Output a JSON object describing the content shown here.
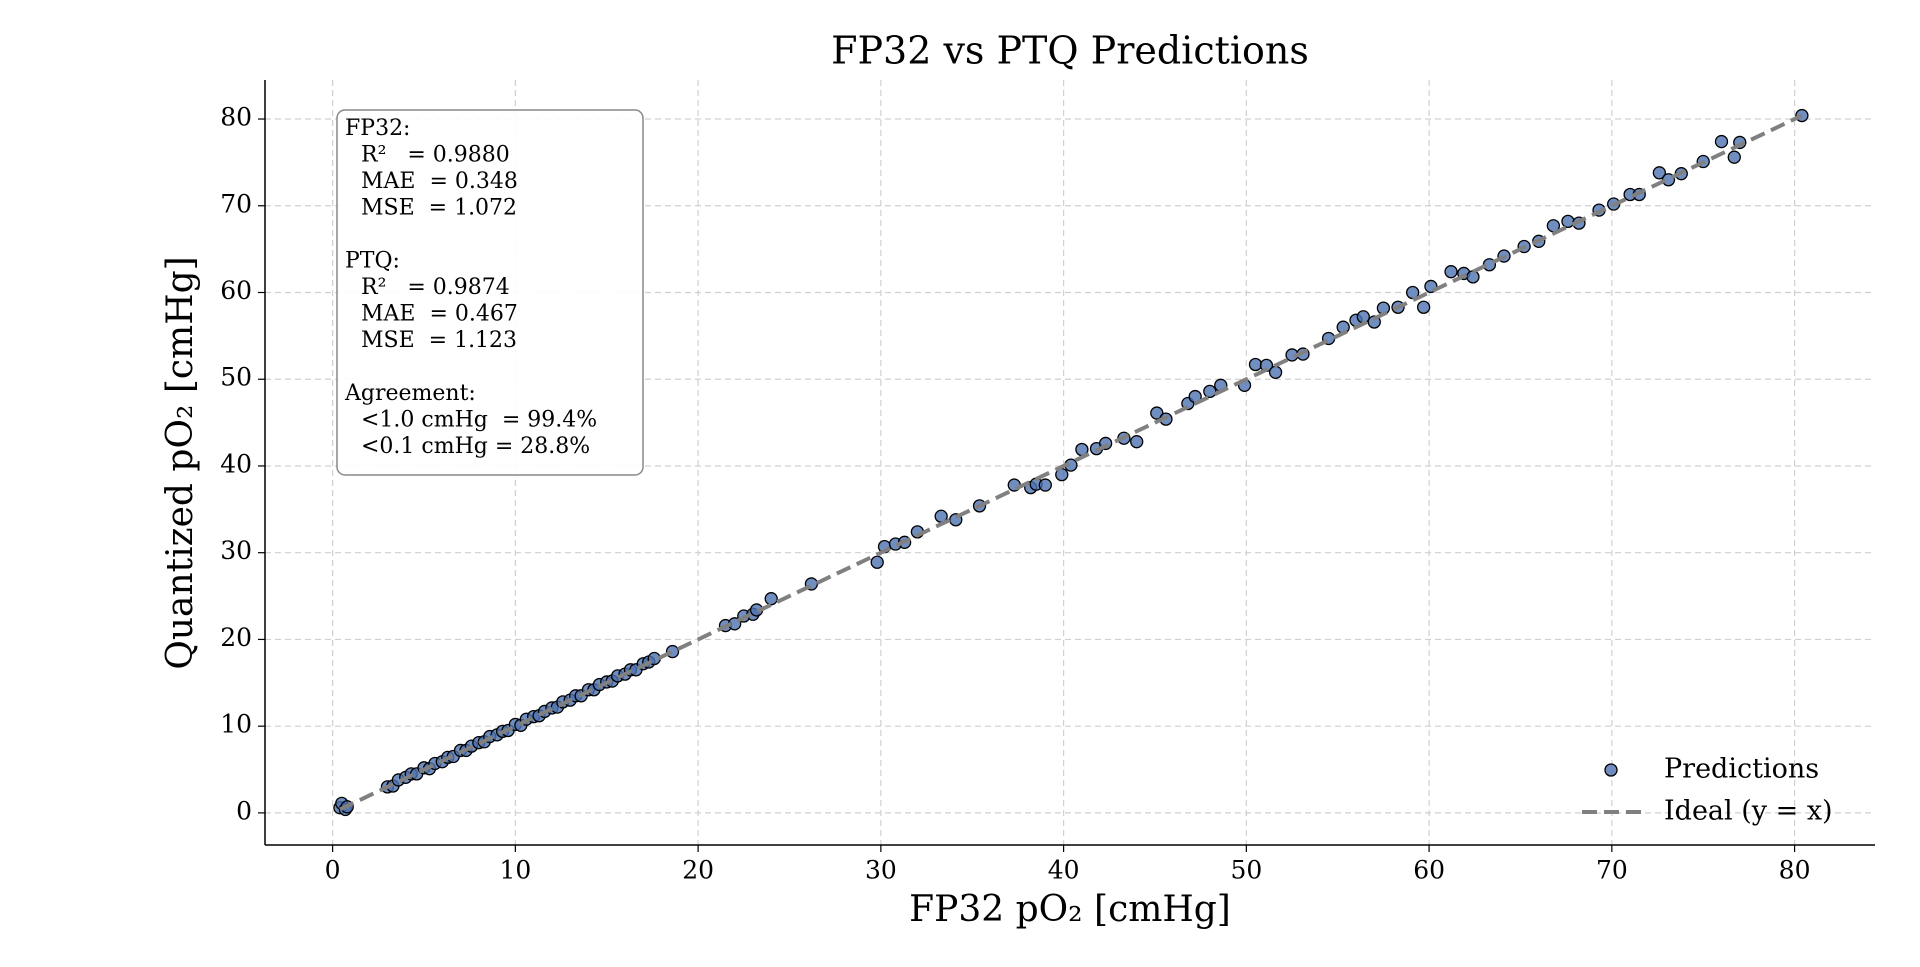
{
  "chart_data": {
    "type": "scatter",
    "title": "FP32 vs PTQ Predictions",
    "xlabel": "FP32 pO₂ [cmHg]",
    "ylabel": "Quantized pO₂ [cmHg]",
    "xlim": [
      -3.7,
      84.4
    ],
    "ylim": [
      -3.7,
      84.5
    ],
    "xticks": [
      0,
      10,
      20,
      30,
      40,
      50,
      60,
      70,
      80
    ],
    "yticks": [
      0,
      10,
      20,
      30,
      40,
      50,
      60,
      70,
      80
    ],
    "grid": true,
    "legend": "lower right",
    "series": [
      {
        "name": "Predictions",
        "color": "#4c72b0",
        "x": [
          0.4,
          0.5,
          0.7,
          0.8,
          3,
          3.3,
          3.6,
          4,
          4.3,
          4.6,
          5,
          5.3,
          5.6,
          6,
          6.3,
          6.6,
          7,
          7.3,
          7.6,
          8,
          8.3,
          8.6,
          9,
          9.3,
          9.6,
          10,
          10.3,
          10.6,
          11,
          11.3,
          11.6,
          12,
          12.3,
          12.6,
          13,
          13.3,
          13.6,
          14,
          14.3,
          14.6,
          15,
          15.3,
          15.6,
          16,
          16.3,
          16.6,
          17,
          17.3,
          17.6,
          18.6,
          21.5,
          22,
          22.5,
          23,
          23.2,
          24,
          26.2,
          29.8,
          30.2,
          30.8,
          31.3,
          32,
          33.3,
          34.1,
          35.4,
          37.3,
          38.2,
          38.5,
          39,
          39.9,
          40.4,
          41,
          41.8,
          42.3,
          43.3,
          44,
          45.1,
          45.6,
          46.8,
          47.2,
          48,
          48.6,
          49.9,
          50.5,
          51.1,
          51.6,
          52.5,
          53.1,
          54.5,
          55.3,
          56,
          56.4,
          57,
          57.5,
          58.3,
          59.1,
          59.7,
          60.1,
          61.2,
          61.9,
          62.4,
          63.3,
          64.1,
          65.2,
          66,
          66.8,
          67.6,
          68.2,
          69.3,
          70.1,
          71,
          71.5,
          72.6,
          73.1,
          73.8,
          75,
          76,
          76.7,
          77,
          80.4
        ],
        "values": [
          0.6,
          1.1,
          0.4,
          0.7,
          3.0,
          3.1,
          3.8,
          4.1,
          4.5,
          4.5,
          5.2,
          5.1,
          5.7,
          5.9,
          6.4,
          6.5,
          7.2,
          7.2,
          7.7,
          8.1,
          8.2,
          8.8,
          9.0,
          9.4,
          9.5,
          10.2,
          10.1,
          10.8,
          11.1,
          11.2,
          11.7,
          12.1,
          12.2,
          12.8,
          13.0,
          13.5,
          13.5,
          14.2,
          14.2,
          14.8,
          15.1,
          15.2,
          15.8,
          16.0,
          16.5,
          16.5,
          17.2,
          17.4,
          17.8,
          18.6,
          21.6,
          21.8,
          22.7,
          22.9,
          23.4,
          24.7,
          26.4,
          28.9,
          30.7,
          31.0,
          31.2,
          32.4,
          34.2,
          33.8,
          35.4,
          37.8,
          37.5,
          37.9,
          37.8,
          39.0,
          40.1,
          41.9,
          42.0,
          42.6,
          43.2,
          42.8,
          46.1,
          45.4,
          47.2,
          48.0,
          48.6,
          49.3,
          49.3,
          51.7,
          51.6,
          50.8,
          52.8,
          52.9,
          54.7,
          56.0,
          56.8,
          57.2,
          56.6,
          58.2,
          58.3,
          60.0,
          58.3,
          60.7,
          62.4,
          62.2,
          61.8,
          63.2,
          64.2,
          65.3,
          65.9,
          67.7,
          68.2,
          68.0,
          69.5,
          70.2,
          71.3,
          71.3,
          73.8,
          73.0,
          73.7,
          75.1,
          77.4,
          75.6,
          77.3,
          80.4
        ]
      }
    ],
    "reference_line": {
      "name": "Ideal (y = x)",
      "color": "#808080",
      "x": [
        0.4,
        80.4
      ],
      "values": [
        0.4,
        80.4
      ]
    },
    "stats_box": [
      {
        "title": "FP32:",
        "lines": [
          "R²   = 0.9880",
          "MAE  = 0.348",
          "MSE  = 1.072"
        ]
      },
      {
        "title": "PTQ:",
        "lines": [
          "R²   = 0.9874",
          "MAE  = 0.467",
          "MSE  = 1.123"
        ]
      },
      {
        "title": "Agreement:",
        "lines": [
          "<1.0 cmHg  = 99.4%",
          "<0.1 cmHg = 28.8%"
        ]
      }
    ]
  }
}
